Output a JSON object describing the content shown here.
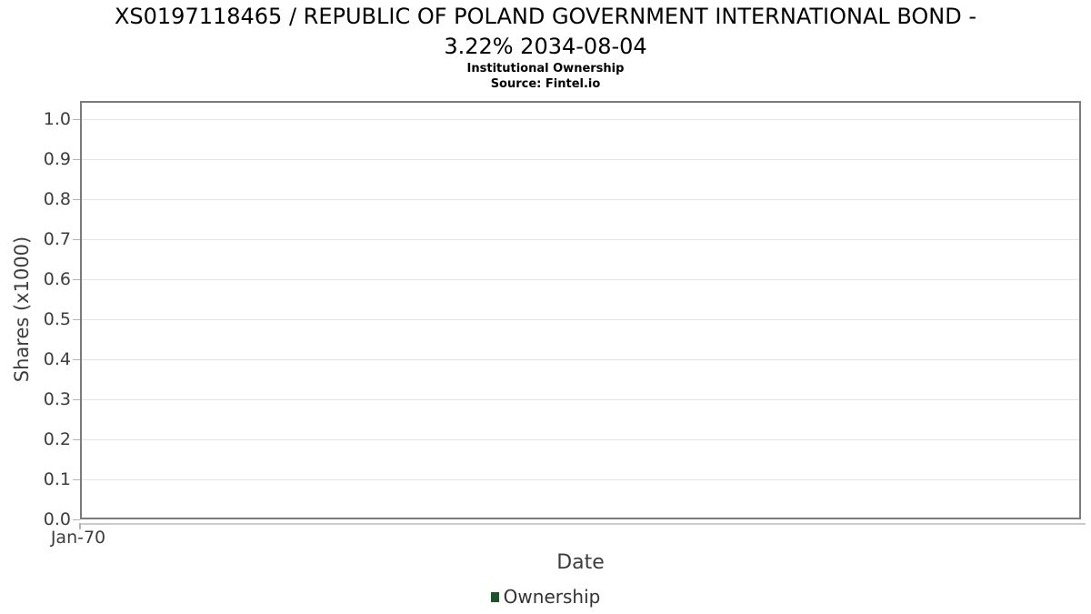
{
  "header": {
    "title_line1": "XS0197118465 / REPUBLIC OF POLAND GOVERNMENT INTERNATIONAL BOND -",
    "title_line2": "3.22% 2034-08-04",
    "subtitle": "Institutional Ownership",
    "source": "Source: Fintel.io"
  },
  "chart_data": {
    "type": "line",
    "title": "XS0197118465 / REPUBLIC OF POLAND GOVERNMENT INTERNATIONAL BOND - 3.22% 2034-08-04",
    "subtitle": "Institutional Ownership",
    "source": "Source: Fintel.io",
    "xlabel": "Date",
    "ylabel": "Shares (x1000)",
    "x_tick_labels": [
      "Jan-70"
    ],
    "y_tick_labels": [
      "0.0",
      "0.1",
      "0.2",
      "0.3",
      "0.4",
      "0.5",
      "0.6",
      "0.7",
      "0.8",
      "0.9",
      "1.0"
    ],
    "y_tick_values": [
      0.0,
      0.1,
      0.2,
      0.3,
      0.4,
      0.5,
      0.6,
      0.7,
      0.8,
      0.9,
      1.0
    ],
    "ylim": [
      0.0,
      1.045
    ],
    "grid": true,
    "legend_position": "bottom",
    "series": [
      {
        "name": "Ownership",
        "color": "#1c542d",
        "values": []
      }
    ]
  },
  "legend": {
    "items": [
      {
        "label": "Ownership",
        "color": "#1c542d"
      }
    ]
  },
  "colors": {
    "background": "#ffffff",
    "plot_border": "#7b7b7b",
    "gridline": "#e4e4e4",
    "tick": "#b4b4b4",
    "axis_line": "#cbcbcb",
    "axis_text": "#3d3d3d",
    "title_text": "#000000"
  }
}
